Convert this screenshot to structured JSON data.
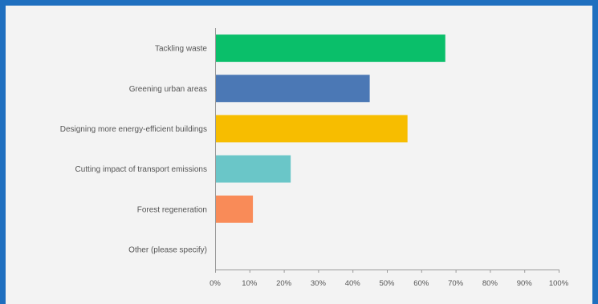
{
  "chart_data": {
    "type": "bar",
    "orientation": "horizontal",
    "title": "",
    "xlabel": "",
    "ylabel": "",
    "categories": [
      "Tackling waste",
      "Greening urban areas",
      "Designing more energy-efficient buildings",
      "Cutting impact of transport emissions",
      "Forest regeneration",
      "Other (please specify)"
    ],
    "values": [
      67,
      45,
      56,
      22,
      11,
      0
    ],
    "bar_colors": [
      "#0abf6a",
      "#4b78b5",
      "#f7bd00",
      "#6ac6c8",
      "#f98b58",
      "#cccccc"
    ],
    "xlim": [
      0,
      100
    ],
    "ticks": [
      "0%",
      "10%",
      "20%",
      "30%",
      "40%",
      "50%",
      "60%",
      "70%",
      "80%",
      "90%",
      "100%"
    ],
    "grid": false,
    "legend": "none",
    "colors": {
      "frame": "#1f6fbf",
      "background": "#f3f3f3",
      "axis": "#9a9a9a",
      "text": "#555555"
    }
  }
}
